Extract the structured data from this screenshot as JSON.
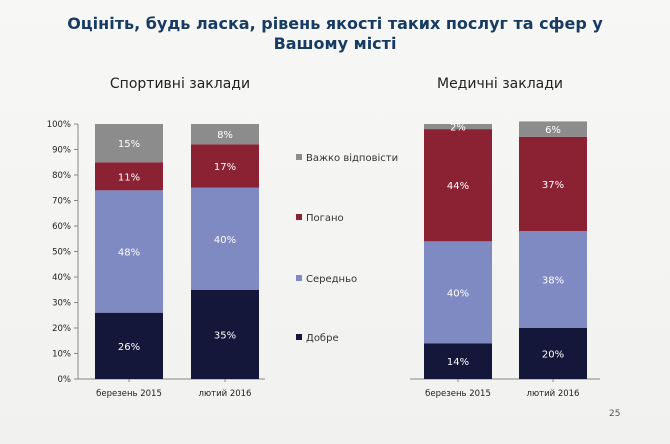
{
  "page": {
    "title": "Оцініть, будь ласка, рівень якості таких послуг та сфер у Вашому місті",
    "page_number": "25"
  },
  "legend": [
    {
      "label": "Важко відповісти",
      "color": "#8c8c8c"
    },
    {
      "label": "Погано",
      "color": "#8b2233"
    },
    {
      "label": "Середньо",
      "color": "#7f89c2"
    },
    {
      "label": "Добре",
      "color": "#14163a"
    }
  ],
  "chart_data": [
    {
      "type": "bar",
      "stacked": true,
      "title": "Спортивні заклади",
      "categories": [
        "березень 2015",
        "лютий 2016"
      ],
      "yticks": [
        "0%",
        "10%",
        "20%",
        "30%",
        "40%",
        "50%",
        "60%",
        "70%",
        "80%",
        "90%",
        "100%"
      ],
      "ylim": [
        0,
        100
      ],
      "series": [
        {
          "name": "Добре",
          "values": [
            26,
            35
          ],
          "labels": [
            "26%",
            "35%"
          ],
          "color": "#14163a"
        },
        {
          "name": "Середньо",
          "values": [
            48,
            40
          ],
          "labels": [
            "48%",
            "40%"
          ],
          "color": "#7f89c2"
        },
        {
          "name": "Погано",
          "values": [
            11,
            17
          ],
          "labels": [
            "11%",
            "17%"
          ],
          "color": "#8b2233"
        },
        {
          "name": "Важко відповісти",
          "values": [
            15,
            8
          ],
          "labels": [
            "15%",
            "8%"
          ],
          "color": "#8c8c8c"
        }
      ]
    },
    {
      "type": "bar",
      "stacked": true,
      "title": "Медичні заклади",
      "categories": [
        "березень 2015",
        "лютий 2016"
      ],
      "ylim": [
        0,
        100
      ],
      "series": [
        {
          "name": "Добре",
          "values": [
            14,
            20
          ],
          "labels": [
            "14%",
            "20%"
          ],
          "color": "#14163a"
        },
        {
          "name": "Середньо",
          "values": [
            40,
            38
          ],
          "labels": [
            "40%",
            "38%"
          ],
          "color": "#7f89c2"
        },
        {
          "name": "Погано",
          "values": [
            44,
            37
          ],
          "labels": [
            "44%",
            "37%"
          ],
          "color": "#8b2233"
        },
        {
          "name": "Важко відповісти",
          "values": [
            2,
            6
          ],
          "labels": [
            "2%",
            "6%"
          ],
          "color": "#8c8c8c"
        }
      ]
    }
  ]
}
